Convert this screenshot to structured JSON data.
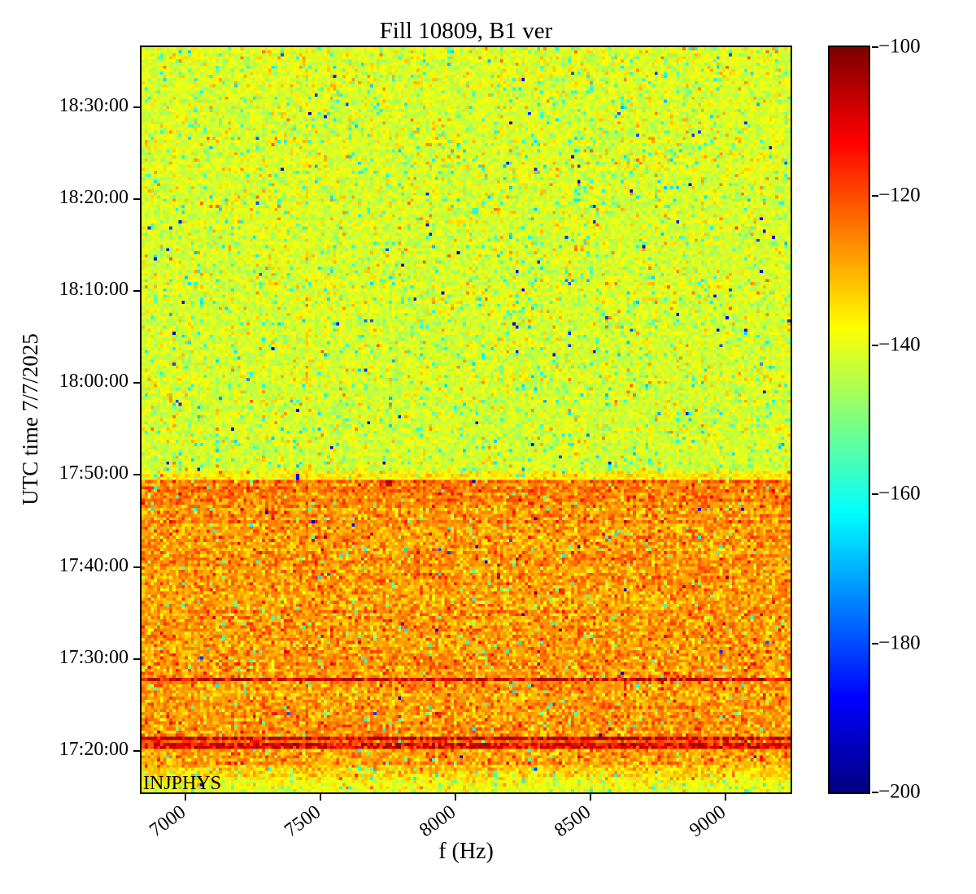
{
  "figure": {
    "title": "Fill 10809, B1 ver",
    "xlabel": "f (Hz)",
    "ylabel": "UTC time 7/7/2025",
    "annotation": "INJPHYS",
    "background_color": "#ffffff",
    "frame_color": "#000000"
  },
  "chart_data": {
    "type": "heatmap",
    "title": "Fill 10809, B1 ver",
    "xlabel": "f (Hz)",
    "ylabel": "UTC time 7/7/2025",
    "annotation": "INJPHYS",
    "colormap": "jet",
    "clim": [
      -200,
      -100
    ],
    "colorbar_ticks": [
      -100,
      -120,
      -140,
      -160,
      -180,
      -200
    ],
    "colorbar_tick_labels": [
      "−100",
      "−120",
      "−140",
      "−160",
      "−180",
      "−200"
    ],
    "x_range_hz": [
      6837,
      9240
    ],
    "x_ticks_hz": [
      7000,
      7500,
      8000,
      8500,
      9000
    ],
    "x_tick_labels": [
      "7000",
      "7500",
      "8000",
      "8500",
      "9000"
    ],
    "time_top_label": "18:36:30",
    "time_bottom_label": "17:15:30",
    "time_top_min": 1116.5,
    "time_bottom_min": 1035.5,
    "y_ticks": [
      {
        "label": "18:30:00",
        "min": 1110
      },
      {
        "label": "18:20:00",
        "min": 1100
      },
      {
        "label": "18:10:00",
        "min": 1090
      },
      {
        "label": "18:00:00",
        "min": 1080
      },
      {
        "label": "17:50:00",
        "min": 1070
      },
      {
        "label": "17:40:00",
        "min": 1060
      },
      {
        "label": "17:30:00",
        "min": 1050
      },
      {
        "label": "17:20:00",
        "min": 1040
      }
    ],
    "grid": {
      "cols": 210,
      "rows": 241
    },
    "seed": 1337,
    "regions": [
      {
        "name": "stable-beam-noise",
        "zone": "upper",
        "t_from": 1116.5,
        "t_to": 1070.35,
        "base": -140.6,
        "base_to": -142.0,
        "std": 3.4,
        "row_jitter": 0.7
      },
      {
        "name": "boundary-yellow-band",
        "zone": "upper",
        "t_from": 1070.35,
        "t_to": 1069.55,
        "base": -135.5,
        "std": 2.8,
        "row_jitter": 0.5
      },
      {
        "name": "injection-hot-band",
        "zone": "lower",
        "t_from": 1069.55,
        "t_to": 1066.3,
        "base": -124.6,
        "std": 4.4,
        "row_jitter": 1.2
      },
      {
        "name": "injection-main",
        "zone": "lower",
        "t_from": 1066.3,
        "t_to": 1047.95,
        "base": -127.8,
        "std": 4.9,
        "row_jitter": 1.1
      },
      {
        "name": "dark-line-172730",
        "zone": "lower",
        "t_from": 1047.95,
        "t_to": 1047.5,
        "base": -106.0,
        "std": 3.0,
        "row_jitter": 0,
        "line": true,
        "mix_p": 0.35,
        "mix_base": -118
      },
      {
        "name": "injection-main-2",
        "zone": "lower",
        "t_from": 1047.5,
        "t_to": 1041.45,
        "base": -127.5,
        "std": 4.9,
        "row_jitter": 1.1
      },
      {
        "name": "dark-line-172120",
        "zone": "lower",
        "t_from": 1041.45,
        "t_to": 1041.05,
        "base": -105.0,
        "std": 2.5,
        "row_jitter": 0,
        "line": true,
        "mix_p": 0.3,
        "mix_base": -117
      },
      {
        "name": "between-lines",
        "zone": "lower",
        "t_from": 1041.05,
        "t_to": 1040.75,
        "base": -123.5,
        "std": 4.0,
        "row_jitter": 0.8
      },
      {
        "name": "dark-line-172030",
        "zone": "lower",
        "t_from": 1040.75,
        "t_to": 1040.35,
        "base": -107.0,
        "std": 3.0,
        "row_jitter": 0,
        "line": true,
        "mix_p": 0.35,
        "mix_base": -118
      },
      {
        "name": "injection-tail",
        "zone": "lower",
        "t_from": 1040.35,
        "t_to": 1038.55,
        "base": -127.8,
        "std": 4.9,
        "row_jitter": 1.0
      },
      {
        "name": "fade-to-preinj",
        "zone": "lower",
        "t_from": 1038.55,
        "t_to": 1037.0,
        "base": -131.0,
        "base_to": -136.5,
        "std": 4.2,
        "row_jitter": 0.8
      },
      {
        "name": "pre-injection-band",
        "zone": "upper",
        "t_from": 1037.0,
        "t_to": 1035.5,
        "base": -138.8,
        "std": 3.6,
        "row_jitter": 0.7
      }
    ],
    "noise": {
      "upper": {
        "p_low": 0.05,
        "low_min": 8,
        "low_span": 16,
        "p_vlow": 0.0035,
        "p_high": 0.04,
        "high_min": 5,
        "high_span": 8
      },
      "lower": {
        "p_low": 0.03,
        "low_min": 10,
        "low_span": 20,
        "p_vlow": 0.0012,
        "p_high": 0.055,
        "high_min": 4,
        "high_span": 9
      }
    },
    "vertical_lines": [
      {
        "f": 7445,
        "width_hz": 13,
        "delta_upper": 4.5,
        "delta_lower": 2.0
      },
      {
        "f": 8185,
        "width_hz": 12,
        "delta_upper": 0.0,
        "delta_lower": -2.5
      }
    ],
    "hot_spot": {
      "f_from": 7745,
      "f_to": 7766,
      "t_from": 1069.5,
      "t_to": 1068.75,
      "value": -106,
      "std": 2
    }
  }
}
